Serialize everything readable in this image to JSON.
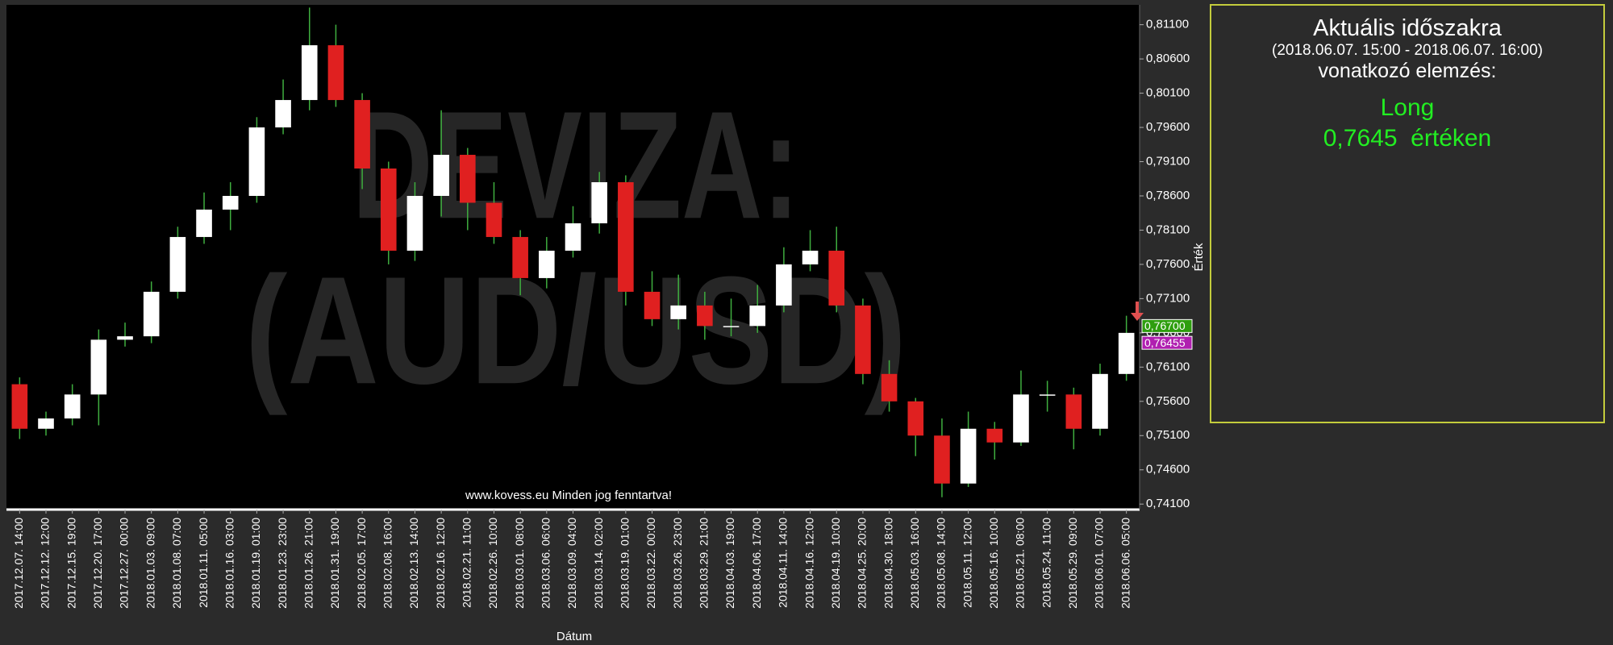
{
  "chart_data": {
    "type": "candlestick",
    "watermark": [
      "DEVIZA:",
      "(AUD/USD)"
    ],
    "footer": "www.kovess.eu Minden jog fenntartva!",
    "x_label": "Dátum",
    "y_label": "Érték",
    "up_color": "#ffffff",
    "down_color": "#e02020",
    "wick_color": "#3fae3f",
    "categories": [
      "2017.12.07. 14:00",
      "2017.12.12. 12:00",
      "2017.12.15. 19:00",
      "2017.12.20. 17:00",
      "2017.12.27. 00:00",
      "2018.01.03. 09:00",
      "2018.01.08. 07:00",
      "2018.01.11. 05:00",
      "2018.01.16. 03:00",
      "2018.01.19. 01:00",
      "2018.01.23. 23:00",
      "2018.01.26. 21:00",
      "2018.01.31. 19:00",
      "2018.02.05. 17:00",
      "2018.02.08. 16:00",
      "2018.02.13. 14:00",
      "2018.02.16. 12:00",
      "2018.02.21. 11:00",
      "2018.02.26. 10:00",
      "2018.03.01. 08:00",
      "2018.03.06. 06:00",
      "2018.03.09. 04:00",
      "2018.03.14. 02:00",
      "2018.03.19. 01:00",
      "2018.03.22. 00:00",
      "2018.03.26. 23:00",
      "2018.03.29. 21:00",
      "2018.04.03. 19:00",
      "2018.04.06. 17:00",
      "2018.04.11. 14:00",
      "2018.04.16. 12:00",
      "2018.04.19. 10:00",
      "2018.04.25. 20:00",
      "2018.04.30. 18:00",
      "2018.05.03. 16:00",
      "2018.05.08. 14:00",
      "2018.05.11. 12:00",
      "2018.05.16. 10:00",
      "2018.05.21. 08:00",
      "2018.05.24. 11:00",
      "2018.05.29. 09:00",
      "2018.06.01. 07:00",
      "2018.06.06. 05:00"
    ],
    "open": [
      0.7585,
      0.752,
      0.7535,
      0.757,
      0.765,
      0.7655,
      0.772,
      0.78,
      0.784,
      0.786,
      0.796,
      0.8,
      0.808,
      0.8,
      0.79,
      0.778,
      0.786,
      0.792,
      0.785,
      0.78,
      0.774,
      0.778,
      0.782,
      0.788,
      0.772,
      0.768,
      0.77,
      0.767,
      0.767,
      0.77,
      0.776,
      0.778,
      0.77,
      0.76,
      0.756,
      0.751,
      0.744,
      0.752,
      0.75,
      0.757,
      0.757,
      0.752,
      0.76
    ],
    "high": [
      0.7595,
      0.7545,
      0.7585,
      0.7665,
      0.7675,
      0.7735,
      0.7815,
      0.7865,
      0.788,
      0.7975,
      0.803,
      0.8135,
      0.811,
      0.801,
      0.791,
      0.788,
      0.7985,
      0.793,
      0.788,
      0.781,
      0.78,
      0.7845,
      0.7895,
      0.789,
      0.775,
      0.7745,
      0.772,
      0.771,
      0.773,
      0.7785,
      0.781,
      0.7815,
      0.771,
      0.762,
      0.7565,
      0.7535,
      0.7545,
      0.753,
      0.7605,
      0.759,
      0.758,
      0.7615,
      0.7685
    ],
    "low": [
      0.7505,
      0.751,
      0.7525,
      0.7525,
      0.764,
      0.7645,
      0.771,
      0.779,
      0.781,
      0.785,
      0.795,
      0.7985,
      0.799,
      0.787,
      0.776,
      0.7765,
      0.783,
      0.781,
      0.779,
      0.7715,
      0.7725,
      0.777,
      0.7805,
      0.77,
      0.767,
      0.7665,
      0.765,
      0.7655,
      0.766,
      0.769,
      0.775,
      0.769,
      0.7585,
      0.7545,
      0.748,
      0.742,
      0.7435,
      0.7475,
      0.7495,
      0.7545,
      0.749,
      0.751,
      0.759
    ],
    "close": [
      0.752,
      0.7535,
      0.757,
      0.765,
      0.7655,
      0.772,
      0.78,
      0.784,
      0.786,
      0.796,
      0.8,
      0.808,
      0.8,
      0.79,
      0.778,
      0.786,
      0.792,
      0.785,
      0.78,
      0.774,
      0.778,
      0.782,
      0.788,
      0.772,
      0.768,
      0.77,
      0.767,
      0.767,
      0.77,
      0.776,
      0.778,
      0.77,
      0.76,
      0.756,
      0.751,
      0.744,
      0.752,
      0.75,
      0.757,
      0.757,
      0.752,
      0.76,
      0.766
    ],
    "ylim": [
      0.7402,
      0.8139
    ],
    "yticks": [
      {
        "value": 0.741,
        "label": "0,74100"
      },
      {
        "value": 0.746,
        "label": "0,74600"
      },
      {
        "value": 0.751,
        "label": "0,75100"
      },
      {
        "value": 0.756,
        "label": "0,75600"
      },
      {
        "value": 0.761,
        "label": "0,76100"
      },
      {
        "value": 0.766,
        "label": "0,76600"
      },
      {
        "value": 0.771,
        "label": "0,77100"
      },
      {
        "value": 0.776,
        "label": "0,77600"
      },
      {
        "value": 0.781,
        "label": "0,78100"
      },
      {
        "value": 0.786,
        "label": "0,78600"
      },
      {
        "value": 0.791,
        "label": "0,79100"
      },
      {
        "value": 0.796,
        "label": "0,79600"
      },
      {
        "value": 0.801,
        "label": "0,80100"
      },
      {
        "value": 0.806,
        "label": "0,80600"
      },
      {
        "value": 0.811,
        "label": "0,81100"
      }
    ],
    "price_markers": [
      {
        "value": 0.767,
        "label": "0,76700",
        "color": "#2e9e0e"
      },
      {
        "value": 0.76455,
        "label": "0,76455",
        "color": "#b01fb0"
      }
    ]
  },
  "panel": {
    "title": "Aktuális időszakra",
    "period": "(2018.06.07. 15:00 - 2018.06.07. 16:00)",
    "subtitle": "vonatkozó elemzés:",
    "signal": "Long",
    "price_text": "0,7645  értéken"
  }
}
